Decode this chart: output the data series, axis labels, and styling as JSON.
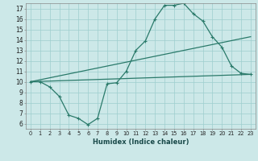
{
  "xlabel": "Humidex (Indice chaleur)",
  "xlim": [
    -0.5,
    23.5
  ],
  "ylim": [
    5.5,
    17.5
  ],
  "xticks": [
    0,
    1,
    2,
    3,
    4,
    5,
    6,
    7,
    8,
    9,
    10,
    11,
    12,
    13,
    14,
    15,
    16,
    17,
    18,
    19,
    20,
    21,
    22,
    23
  ],
  "yticks": [
    6,
    7,
    8,
    9,
    10,
    11,
    12,
    13,
    14,
    15,
    16,
    17
  ],
  "bg_color": "#cce8e8",
  "line_color": "#2a7a6a",
  "curve1_x": [
    0,
    1,
    2,
    3,
    4,
    5,
    6,
    7,
    8,
    9,
    10,
    11,
    12,
    13,
    14,
    15,
    16,
    17,
    18,
    19,
    20,
    21,
    22,
    23
  ],
  "curve1_y": [
    10.0,
    10.0,
    9.5,
    8.6,
    6.8,
    6.5,
    5.9,
    6.5,
    9.8,
    9.9,
    11.0,
    13.0,
    13.9,
    16.0,
    17.3,
    17.3,
    17.5,
    16.5,
    15.8,
    14.3,
    13.3,
    11.5,
    10.8,
    10.7
  ],
  "curve2_x": [
    0,
    23
  ],
  "curve2_y": [
    10.0,
    14.3
  ],
  "curve3_x": [
    0,
    23
  ],
  "curve3_y": [
    10.0,
    10.7
  ],
  "line2_mid_x": [
    19
  ],
  "line2_mid_y": [
    13.5
  ],
  "line3_mid_x": [
    19
  ],
  "line3_mid_y": [
    10.3
  ]
}
